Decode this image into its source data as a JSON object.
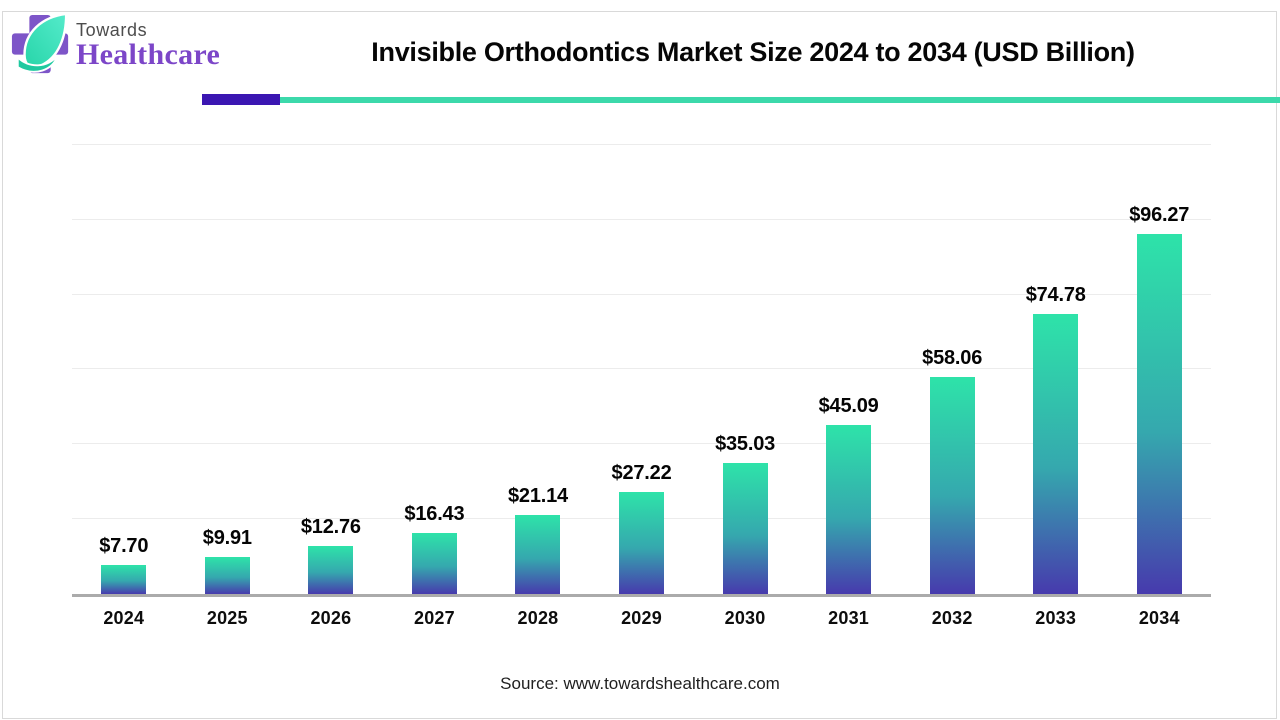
{
  "header": {
    "logo": {
      "brand_top": "Towards",
      "brand_bottom": "Healthcare"
    },
    "title": "Invisible Orthodontics Market Size 2024 to 2034 (USD Billion)"
  },
  "chart_data": {
    "type": "bar",
    "title": "Invisible Orthodontics Market Size 2024 to 2034 (USD Billion)",
    "categories": [
      "2024",
      "2025",
      "2026",
      "2027",
      "2028",
      "2029",
      "2030",
      "2031",
      "2032",
      "2033",
      "2034"
    ],
    "values": [
      7.7,
      9.91,
      12.76,
      16.43,
      21.14,
      27.22,
      35.03,
      45.09,
      58.06,
      74.78,
      96.27
    ],
    "value_labels": [
      "$7.70",
      "$9.91",
      "$12.76",
      "$16.43",
      "$21.14",
      "$27.22",
      "$35.03",
      "$45.09",
      "$58.06",
      "$74.78",
      "$96.27"
    ],
    "unit": "USD Billion",
    "xlabel": "",
    "ylabel": "",
    "ylim": [
      0,
      124
    ],
    "gridline_step": 20,
    "grid": true,
    "legend_position": "none",
    "bar_gradient": [
      "#2ee3a9",
      "#35a8ae",
      "#473aad"
    ]
  },
  "footer": {
    "source": "Source: www.towardshealthcare.com"
  },
  "colors": {
    "accent_purple": "#3b16b2",
    "accent_teal": "#3cd9ab",
    "logo_cross_purple": "#7d55c8",
    "logo_leaf_mint": "#3be0b8",
    "logo_leaf_dark": "#1ec9a0",
    "brand_top_gray": "#4d4d4d",
    "brand_bottom_purple": "#7c46c8",
    "axis_line": "#ababab",
    "gridline": "#ececec",
    "title_color": "#060606"
  }
}
